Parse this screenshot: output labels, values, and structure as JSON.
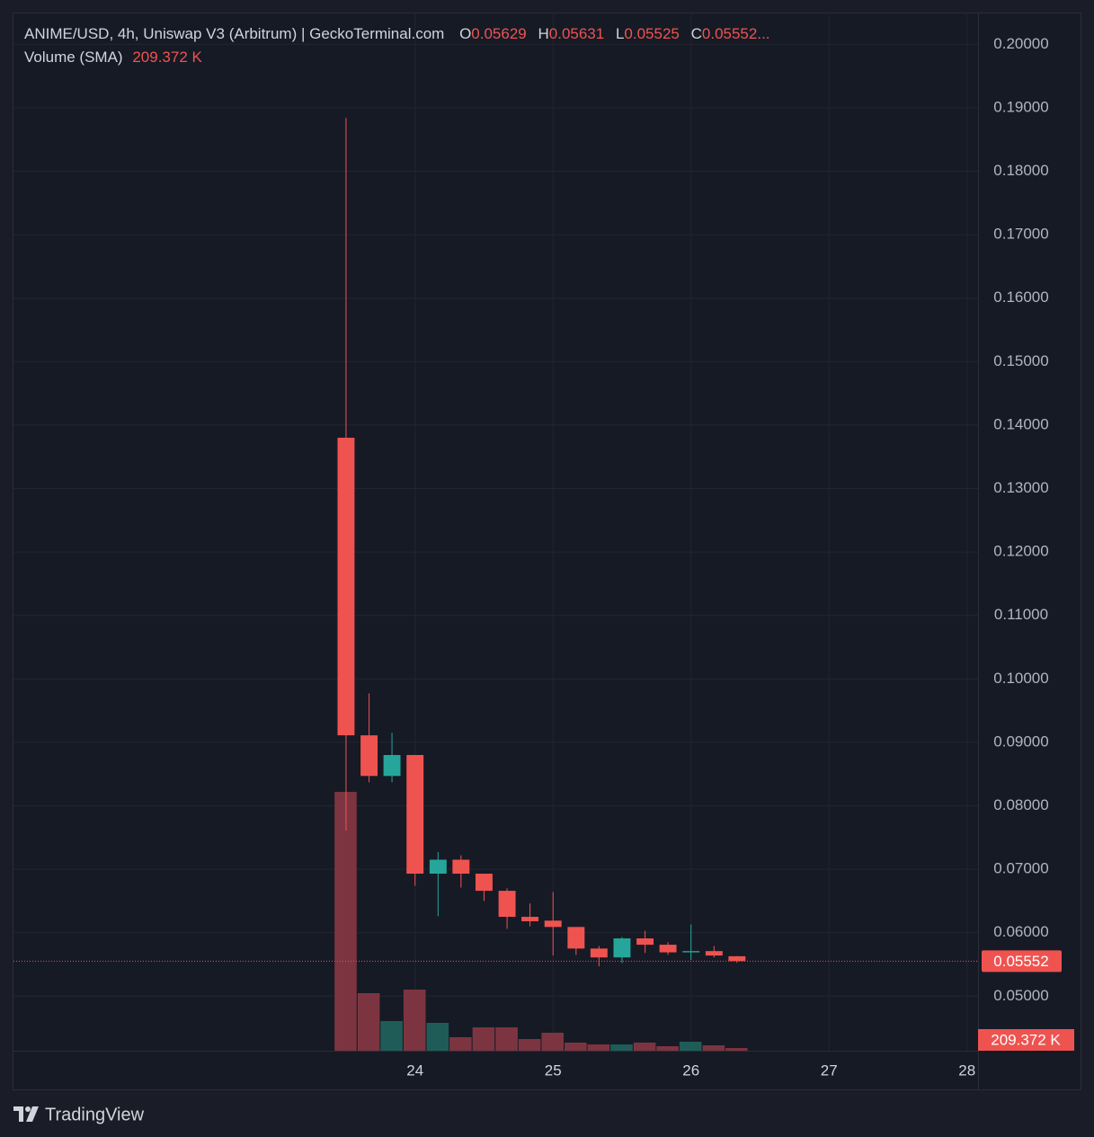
{
  "chart_data": {
    "type": "candlestick",
    "title": "ANIME/USD, 4h, Uniswap V3 (Arbitrum) | GeckoTerminal.com",
    "ohlc_keys": [
      "O",
      "H",
      "L",
      "C"
    ],
    "ellipsis": "...",
    "x": [
      23.5,
      23.667,
      23.833,
      24,
      24.167,
      24.333,
      24.5,
      24.667,
      24.833,
      25,
      25.167,
      25.333,
      25.5,
      25.667,
      25.833,
      26,
      26.167,
      26.333
    ],
    "open": [
      0.138,
      0.0911,
      0.0847,
      0.088,
      0.0693,
      0.0715,
      0.0693,
      0.0666,
      0.0625,
      0.0619,
      0.0609,
      0.0575,
      0.0561,
      0.0591,
      0.0581,
      0.0569,
      0.0571,
      0.05629
    ],
    "high": [
      0.1884,
      0.0977,
      0.0915,
      0.088,
      0.0727,
      0.0722,
      0.0693,
      0.067,
      0.0646,
      0.0664,
      0.0609,
      0.0579,
      0.0593,
      0.0603,
      0.0585,
      0.0613,
      0.0579,
      0.05631
    ],
    "low": [
      0.0761,
      0.0837,
      0.0837,
      0.0674,
      0.0626,
      0.0671,
      0.065,
      0.0606,
      0.061,
      0.0564,
      0.0565,
      0.0547,
      0.0552,
      0.0568,
      0.0565,
      0.0557,
      0.0561,
      0.05525
    ],
    "close": [
      0.0911,
      0.0847,
      0.088,
      0.0693,
      0.0715,
      0.0693,
      0.0666,
      0.0625,
      0.0618,
      0.0609,
      0.0575,
      0.0561,
      0.0591,
      0.0581,
      0.0569,
      0.0571,
      0.0564,
      0.05552
    ],
    "up_color": "#26a69a",
    "down_color": "#ef5350",
    "volume": {
      "name": "Volume (SMA)",
      "values": [
        20160000,
        4480000,
        2310000,
        4760000,
        2170000,
        1050000,
        1820000,
        1820000,
        910000,
        1400000,
        630000,
        490000,
        490000,
        630000,
        350000,
        700000,
        420000,
        209372
      ],
      "value_labels": [
        null,
        null,
        null,
        null,
        null,
        null,
        null,
        null,
        null,
        null,
        null,
        null,
        null,
        null,
        null,
        null,
        null,
        "209.372 K"
      ],
      "up_color": "#1f5c58",
      "down_color": "#7c3540"
    },
    "xlim": [
      21.09,
      28.08
    ],
    "xticks": [
      24,
      25,
      26,
      27,
      28
    ],
    "ylim": [
      0.0414,
      0.205
    ],
    "yticks": [
      {
        "value": 0.05,
        "label": "0.05000"
      },
      {
        "value": 0.06,
        "label": "0.06000"
      },
      {
        "value": 0.07,
        "label": "0.07000"
      },
      {
        "value": 0.08,
        "label": "0.08000"
      },
      {
        "value": 0.09,
        "label": "0.09000"
      },
      {
        "value": 0.1,
        "label": "0.10000"
      },
      {
        "value": 0.11,
        "label": "0.11000"
      },
      {
        "value": 0.12,
        "label": "0.12000"
      },
      {
        "value": 0.13,
        "label": "0.13000"
      },
      {
        "value": 0.14,
        "label": "0.14000"
      },
      {
        "value": 0.15,
        "label": "0.15000"
      },
      {
        "value": 0.16,
        "label": "0.16000"
      },
      {
        "value": 0.17,
        "label": "0.17000"
      },
      {
        "value": 0.18,
        "label": "0.18000"
      },
      {
        "value": 0.19,
        "label": "0.19000"
      },
      {
        "value": 0.2,
        "label": "0.20000"
      }
    ],
    "grid": true
  },
  "footer": {
    "brand": "TradingView"
  }
}
